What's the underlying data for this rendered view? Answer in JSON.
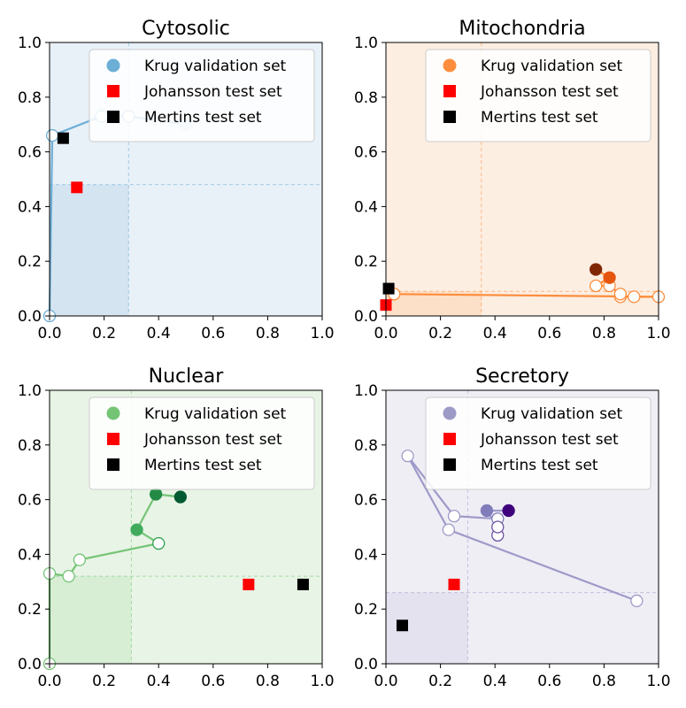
{
  "chart_data": [
    {
      "type": "scatter",
      "title": "Cytosolic",
      "xlim": [
        0,
        1
      ],
      "ylim": [
        0,
        1
      ],
      "xticks": [
        "0.0",
        "0.2",
        "0.4",
        "0.6",
        "0.8",
        "1.0"
      ],
      "yticks": [
        "0.0",
        "0.2",
        "0.4",
        "0.6",
        "0.8",
        "1.0"
      ],
      "color": "#6baed6",
      "shade_light": "#e8f0f8",
      "shade_dark": "#d4e4f1",
      "threshold_x": 0.29,
      "threshold_y": 0.48,
      "legend": [
        "Krug validation set",
        "Johansson test set",
        "Mertins test set"
      ],
      "legend_position": "upper right",
      "krug_path": [
        [
          0.0,
          0.0
        ],
        [
          0.01,
          0.66
        ],
        [
          0.19,
          0.73
        ],
        [
          0.29,
          0.73
        ],
        [
          0.5,
          0.7
        ]
      ],
      "krug_points": [
        {
          "x": 0.0,
          "y": 0.0,
          "filled": false,
          "color": "#6baed6"
        },
        {
          "x": 0.01,
          "y": 0.66,
          "filled": false,
          "color": "#6baed6"
        },
        {
          "x": 0.19,
          "y": 0.73,
          "filled": false,
          "color": "#6baed6"
        },
        {
          "x": 0.29,
          "y": 0.73,
          "filled": false,
          "color": "#6baed6"
        },
        {
          "x": 0.5,
          "y": 0.7,
          "filled": true,
          "color": "#c6dbef"
        }
      ],
      "johansson": {
        "x": 0.1,
        "y": 0.47
      },
      "mertins": {
        "x": 0.05,
        "y": 0.65
      }
    },
    {
      "type": "scatter",
      "title": "Mitochondria",
      "xlim": [
        0,
        1
      ],
      "ylim": [
        0,
        1
      ],
      "xticks": [
        "0.0",
        "0.2",
        "0.4",
        "0.6",
        "0.8",
        "1.0"
      ],
      "yticks": [
        "0.0",
        "0.2",
        "0.4",
        "0.6",
        "0.8",
        "1.0"
      ],
      "color": "#fd8d3c",
      "shade_light": "#fdeee2",
      "shade_dark": "#fde0c8",
      "threshold_x": 0.35,
      "threshold_y": 0.09,
      "legend": [
        "Krug validation set",
        "Johansson test set",
        "Mertins test set"
      ],
      "legend_position": "upper right",
      "krug_path": [
        [
          0.03,
          0.08
        ],
        [
          1.0,
          0.07
        ],
        [
          0.91,
          0.07
        ],
        [
          0.86,
          0.07
        ],
        [
          0.86,
          0.08
        ],
        [
          0.82,
          0.11
        ],
        [
          0.77,
          0.11
        ],
        [
          0.82,
          0.14
        ],
        [
          0.77,
          0.17
        ]
      ],
      "krug_points": [
        {
          "x": 0.03,
          "y": 0.08,
          "filled": false,
          "color": "#fd8d3c"
        },
        {
          "x": 1.0,
          "y": 0.07,
          "filled": false,
          "color": "#fd8d3c"
        },
        {
          "x": 0.91,
          "y": 0.07,
          "filled": false,
          "color": "#fd8d3c"
        },
        {
          "x": 0.86,
          "y": 0.07,
          "filled": false,
          "color": "#fd8d3c"
        },
        {
          "x": 0.86,
          "y": 0.08,
          "filled": false,
          "color": "#fd8d3c"
        },
        {
          "x": 0.82,
          "y": 0.11,
          "filled": false,
          "color": "#fd8d3c"
        },
        {
          "x": 0.77,
          "y": 0.11,
          "filled": false,
          "color": "#fd8d3c"
        },
        {
          "x": 0.82,
          "y": 0.14,
          "filled": true,
          "color": "#e6550d"
        },
        {
          "x": 0.77,
          "y": 0.17,
          "filled": true,
          "color": "#7f2704"
        }
      ],
      "johansson": {
        "x": 0.0,
        "y": 0.04
      },
      "mertins": {
        "x": 0.01,
        "y": 0.1
      }
    },
    {
      "type": "scatter",
      "title": "Nuclear",
      "xlim": [
        0,
        1
      ],
      "ylim": [
        0,
        1
      ],
      "xticks": [
        "0.0",
        "0.2",
        "0.4",
        "0.6",
        "0.8",
        "1.0"
      ],
      "yticks": [
        "0.0",
        "0.2",
        "0.4",
        "0.6",
        "0.8",
        "1.0"
      ],
      "color": "#74c476",
      "shade_light": "#e8f4e6",
      "shade_dark": "#d7eed4",
      "threshold_x": 0.3,
      "threshold_y": 0.32,
      "legend": [
        "Krug validation set",
        "Johansson test set",
        "Mertins test set"
      ],
      "legend_position": "upper right",
      "krug_path": [
        [
          0.0,
          0.0
        ],
        [
          0.0,
          0.33
        ],
        [
          0.07,
          0.32
        ],
        [
          0.11,
          0.38
        ],
        [
          0.4,
          0.44
        ],
        [
          0.32,
          0.49
        ],
        [
          0.39,
          0.62
        ],
        [
          0.48,
          0.61
        ]
      ],
      "krug_points": [
        {
          "x": 0.0,
          "y": 0.0,
          "filled": false,
          "color": "#74c476"
        },
        {
          "x": 0.0,
          "y": 0.33,
          "filled": false,
          "color": "#74c476"
        },
        {
          "x": 0.07,
          "y": 0.32,
          "filled": false,
          "color": "#74c476"
        },
        {
          "x": 0.11,
          "y": 0.38,
          "filled": false,
          "color": "#74c476"
        },
        {
          "x": 0.4,
          "y": 0.44,
          "filled": false,
          "color": "#31a354"
        },
        {
          "x": 0.32,
          "y": 0.49,
          "filled": true,
          "color": "#41ab5d"
        },
        {
          "x": 0.39,
          "y": 0.62,
          "filled": true,
          "color": "#238b45"
        },
        {
          "x": 0.48,
          "y": 0.61,
          "filled": true,
          "color": "#005a32"
        }
      ],
      "johansson": {
        "x": 0.73,
        "y": 0.29
      },
      "mertins": {
        "x": 0.93,
        "y": 0.29
      }
    },
    {
      "type": "scatter",
      "title": "Secretory",
      "xlim": [
        0,
        1
      ],
      "ylim": [
        0,
        1
      ],
      "xticks": [
        "0.0",
        "0.2",
        "0.4",
        "0.6",
        "0.8",
        "1.0"
      ],
      "yticks": [
        "0.0",
        "0.2",
        "0.4",
        "0.6",
        "0.8",
        "1.0"
      ],
      "color": "#9e9ac8",
      "shade_light": "#efeef5",
      "shade_dark": "#e4e2ef",
      "threshold_x": 0.3,
      "threshold_y": 0.26,
      "legend": [
        "Krug validation set",
        "Johansson test set",
        "Mertins test set"
      ],
      "legend_position": "upper right",
      "krug_path": [
        [
          0.92,
          0.23
        ],
        [
          0.23,
          0.49
        ],
        [
          0.08,
          0.76
        ],
        [
          0.25,
          0.54
        ],
        [
          0.41,
          0.53
        ],
        [
          0.41,
          0.47
        ],
        [
          0.41,
          0.5
        ],
        [
          0.37,
          0.56
        ],
        [
          0.45,
          0.56
        ]
      ],
      "krug_points": [
        {
          "x": 0.92,
          "y": 0.23,
          "filled": false,
          "color": "#9e9ac8"
        },
        {
          "x": 0.23,
          "y": 0.49,
          "filled": false,
          "color": "#9e9ac8"
        },
        {
          "x": 0.08,
          "y": 0.76,
          "filled": false,
          "color": "#9e9ac8"
        },
        {
          "x": 0.25,
          "y": 0.54,
          "filled": false,
          "color": "#9e9ac8"
        },
        {
          "x": 0.41,
          "y": 0.53,
          "filled": false,
          "color": "#807dba"
        },
        {
          "x": 0.41,
          "y": 0.47,
          "filled": false,
          "color": "#6a51a3"
        },
        {
          "x": 0.41,
          "y": 0.5,
          "filled": false,
          "color": "#6a51a3"
        },
        {
          "x": 0.37,
          "y": 0.56,
          "filled": true,
          "color": "#807dba"
        },
        {
          "x": 0.45,
          "y": 0.56,
          "filled": true,
          "color": "#3f007d"
        }
      ],
      "johansson": {
        "x": 0.25,
        "y": 0.29
      },
      "mertins": {
        "x": 0.06,
        "y": 0.14
      }
    }
  ],
  "legend_marker_colors": {
    "johansson": "#ff0000",
    "mertins": "#000000"
  }
}
